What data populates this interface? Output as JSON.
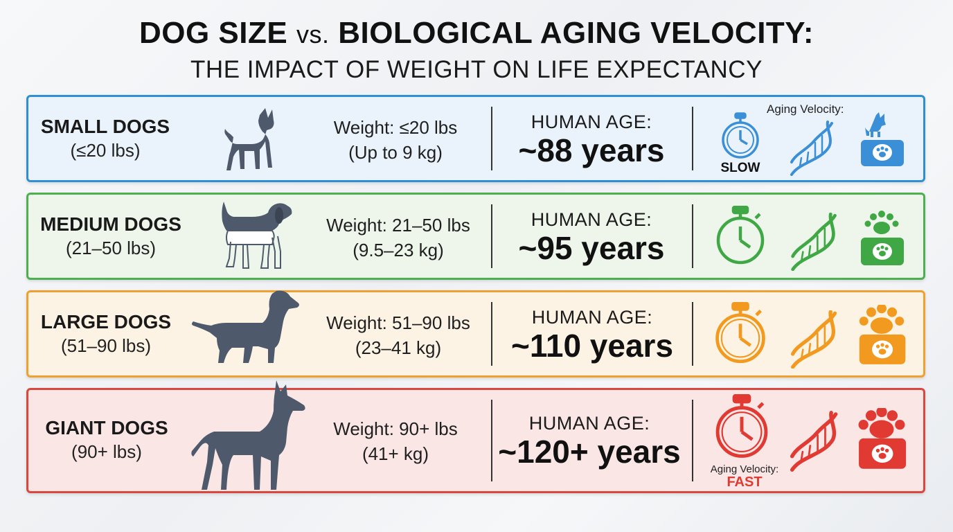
{
  "title": {
    "part1": "DOG SIZE",
    "vs": "vs.",
    "part2": "BIOLOGICAL AGING VELOCITY:",
    "subtitle": "THE IMPACT OF WEIGHT ON LIFE EXPECTANCY"
  },
  "rows": [
    {
      "name": "SMALL DOGS",
      "range": "(≤20 lbs)",
      "weight_line1": "Weight: ≤20 lbs",
      "weight_line2": "(Up to 9 kg)",
      "human_age_label": "HUMAN AGE:",
      "human_age_value": "~88 years",
      "color": "#2f8fd1",
      "bg": "#eaf3fb",
      "icon_color": "#3b8fd6"
    },
    {
      "name": "MEDIUM DOGS",
      "range": "(21–50 lbs)",
      "weight_line1": "Weight: 21–50 lbs",
      "weight_line2": "(9.5–23 kg)",
      "human_age_label": "HUMAN AGE:",
      "human_age_value": "~95 years",
      "color": "#4caf50",
      "bg": "#eef6ec",
      "icon_color": "#3fa845"
    },
    {
      "name": "LARGE DOGS",
      "range": "(51–90 lbs)",
      "weight_line1": "Weight: 51–90 lbs",
      "weight_line2": "(23–41 kg)",
      "human_age_label": "HUMAN AGE:",
      "human_age_value": "~110 years",
      "color": "#f0a030",
      "bg": "#fdf3e4",
      "icon_color": "#f29a1f"
    },
    {
      "name": "GIANT DOGS",
      "range": "(90+ lbs)",
      "weight_line1": "Weight: 90+ lbs",
      "weight_line2": "(41+ kg)",
      "human_age_label": "HUMAN AGE:",
      "human_age_value": "~120+ years",
      "color": "#d9473f",
      "bg": "#f9e6e5",
      "icon_color": "#e03a32"
    }
  ],
  "velocity": {
    "top_label": "Aging Velocity:",
    "slow": "SLOW",
    "bottom_label": "Aging Velocity:",
    "fast": "FAST",
    "fast_color": "#e03a32"
  },
  "icons": [
    "stopwatch-icon",
    "dna-icon",
    "paw-bowl-icon",
    "dog-silhouette-icon"
  ]
}
